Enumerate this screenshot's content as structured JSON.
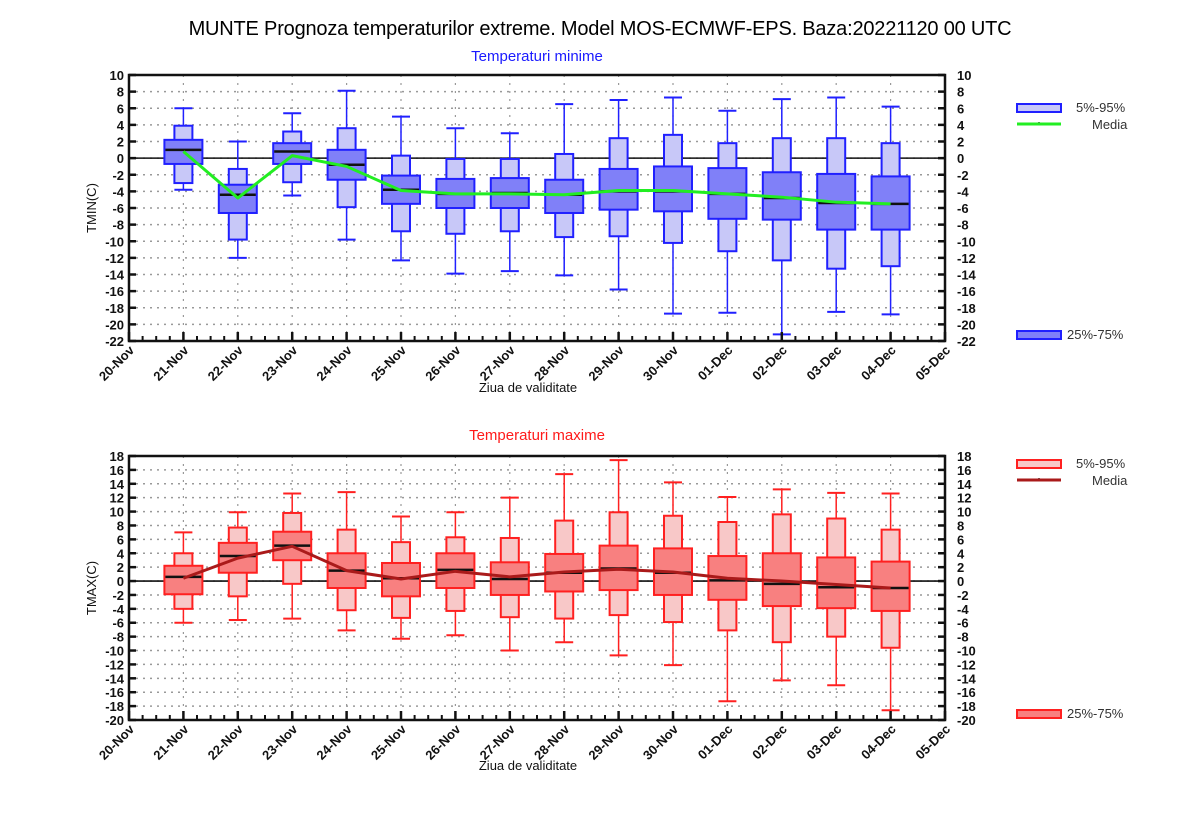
{
  "title": "MUNTE  Prognoza temperaturilor extreme.  Model MOS-ECMWF-EPS. Baza:20221120 00 UTC",
  "chart_data": [
    {
      "type": "boxplot",
      "id": "tmin",
      "title": "Temperaturi minime",
      "title_color": "#1a1aff",
      "xlabel": "Ziua de validitate",
      "ylabel": "TMIN(C)",
      "ylim": [
        -22,
        10
      ],
      "yticks": [
        10,
        8,
        6,
        4,
        2,
        0,
        -2,
        -4,
        -6,
        -8,
        -10,
        -12,
        -14,
        -16,
        -18,
        -20,
        -22
      ],
      "x_ticks": [
        "20-Nov",
        "21-Nov",
        "22-Nov",
        "23-Nov",
        "24-Nov",
        "25-Nov",
        "26-Nov",
        "27-Nov",
        "28-Nov",
        "29-Nov",
        "30-Nov",
        "01-Dec",
        "02-Dec",
        "03-Dec",
        "04-Dec",
        "05-Dec"
      ],
      "grid": true,
      "colors": {
        "outer_fill": "#c8c8f8",
        "inner_fill": "#8080f8",
        "stroke": "#2020ff",
        "mean_line": "#22ee22",
        "median": "#111111"
      },
      "legend": {
        "placement": "right",
        "items": [
          {
            "label": "5%-95%",
            "kind": "outer-box"
          },
          {
            "label": "Media",
            "kind": "mean-line"
          },
          {
            "label": "25%-75%",
            "kind": "inner-box"
          }
        ]
      },
      "categories": [
        "21-Nov",
        "22-Nov",
        "23-Nov",
        "24-Nov",
        "25-Nov",
        "26-Nov",
        "27-Nov",
        "28-Nov",
        "29-Nov",
        "30-Nov",
        "01-Dec",
        "02-Dec",
        "03-Dec",
        "04-Dec"
      ],
      "series": {
        "min": [
          -3.8,
          -12.0,
          -4.5,
          -9.8,
          -12.3,
          -13.9,
          -13.6,
          -14.1,
          -15.8,
          -18.7,
          -18.6,
          -21.2,
          -18.5,
          -18.8
        ],
        "p5": [
          -3.0,
          -9.8,
          -2.9,
          -5.9,
          -8.8,
          -9.1,
          -8.8,
          -9.5,
          -9.4,
          -10.2,
          -11.2,
          -12.3,
          -13.3,
          -13.0
        ],
        "p25": [
          -0.7,
          -6.6,
          -0.7,
          -2.6,
          -5.5,
          -6.0,
          -6.0,
          -6.6,
          -6.2,
          -6.4,
          -7.3,
          -7.4,
          -8.6,
          -8.6
        ],
        "median": [
          1.0,
          -4.4,
          0.8,
          -0.8,
          -3.8,
          -4.3,
          -4.2,
          -4.4,
          -4.0,
          -4.0,
          -4.3,
          -4.8,
          -5.4,
          -5.5
        ],
        "p75": [
          2.2,
          -3.2,
          1.8,
          1.0,
          -2.1,
          -2.5,
          -2.4,
          -2.6,
          -1.3,
          -1.0,
          -1.2,
          -1.7,
          -1.9,
          -2.2
        ],
        "p95": [
          3.9,
          -1.3,
          3.2,
          3.6,
          0.3,
          -0.1,
          -0.1,
          0.5,
          2.4,
          2.8,
          1.8,
          2.4,
          2.4,
          1.8
        ],
        "max": [
          6.0,
          2.0,
          5.4,
          8.1,
          5.0,
          3.6,
          3.0,
          6.5,
          7.0,
          7.3,
          5.7,
          7.1,
          7.3,
          6.2
        ],
        "mean": [
          0.8,
          -4.8,
          0.3,
          -1.0,
          -3.9,
          -4.3,
          -4.3,
          -4.4,
          -3.9,
          -3.9,
          -4.3,
          -4.7,
          -5.3,
          -5.5
        ]
      }
    },
    {
      "type": "boxplot",
      "id": "tmax",
      "title": "Temperaturi maxime",
      "title_color": "#ff1a1a",
      "xlabel": "Ziua de validitate",
      "ylabel": "TMAX(C)",
      "ylim": [
        -20,
        18
      ],
      "yticks": [
        18,
        16,
        14,
        12,
        10,
        8,
        6,
        4,
        2,
        0,
        -2,
        -4,
        -6,
        -8,
        -10,
        -12,
        -14,
        -16,
        -18,
        -20
      ],
      "x_ticks": [
        "20-Nov",
        "21-Nov",
        "22-Nov",
        "23-Nov",
        "24-Nov",
        "25-Nov",
        "26-Nov",
        "27-Nov",
        "28-Nov",
        "29-Nov",
        "30-Nov",
        "01-Dec",
        "02-Dec",
        "03-Dec",
        "04-Dec",
        "05-Dec"
      ],
      "grid": true,
      "colors": {
        "outer_fill": "#f8c8c8",
        "inner_fill": "#f88080",
        "stroke": "#ff2020",
        "mean_line": "#aa1a1a",
        "median": "#111111"
      },
      "legend": {
        "placement": "right",
        "items": [
          {
            "label": "5%-95%",
            "kind": "outer-box"
          },
          {
            "label": "Media",
            "kind": "mean-line"
          },
          {
            "label": "25%-75%",
            "kind": "inner-box"
          }
        ]
      },
      "categories": [
        "21-Nov",
        "22-Nov",
        "23-Nov",
        "24-Nov",
        "25-Nov",
        "26-Nov",
        "27-Nov",
        "28-Nov",
        "29-Nov",
        "30-Nov",
        "01-Dec",
        "02-Dec",
        "03-Dec",
        "04-Dec"
      ],
      "series": {
        "min": [
          -6.0,
          -5.6,
          -5.4,
          -7.1,
          -8.3,
          -7.8,
          -10.0,
          -8.8,
          -10.7,
          -12.1,
          -17.3,
          -14.3,
          -15.0,
          -18.6
        ],
        "p5": [
          -4.0,
          -2.2,
          -0.4,
          -4.2,
          -5.3,
          -4.3,
          -5.2,
          -5.4,
          -4.9,
          -5.9,
          -7.1,
          -8.8,
          -8.0,
          -9.6
        ],
        "p25": [
          -1.9,
          1.2,
          3.0,
          -1.0,
          -2.2,
          -1.0,
          -2.0,
          -1.5,
          -1.3,
          -2.0,
          -2.7,
          -3.6,
          -3.9,
          -4.3
        ],
        "median": [
          0.6,
          3.6,
          5.1,
          1.5,
          0.4,
          1.6,
          0.3,
          1.2,
          1.8,
          1.2,
          0.1,
          -0.4,
          -0.9,
          -1.0
        ],
        "p75": [
          2.2,
          5.5,
          7.1,
          4.0,
          2.6,
          4.0,
          2.7,
          3.9,
          5.1,
          4.7,
          3.6,
          4.0,
          3.4,
          2.8
        ],
        "p95": [
          4.0,
          7.7,
          9.8,
          7.4,
          5.6,
          6.3,
          6.2,
          8.7,
          9.9,
          9.4,
          8.5,
          9.6,
          9.0,
          7.4
        ],
        "max": [
          7.0,
          9.9,
          12.6,
          12.8,
          9.3,
          9.9,
          12.0,
          15.4,
          17.4,
          14.2,
          12.1,
          13.2,
          12.7,
          12.6
        ],
        "mean": [
          0.4,
          3.3,
          5.0,
          1.5,
          0.3,
          1.4,
          0.6,
          1.3,
          1.7,
          1.3,
          0.4,
          0.0,
          -0.5,
          -1.0
        ]
      }
    }
  ]
}
